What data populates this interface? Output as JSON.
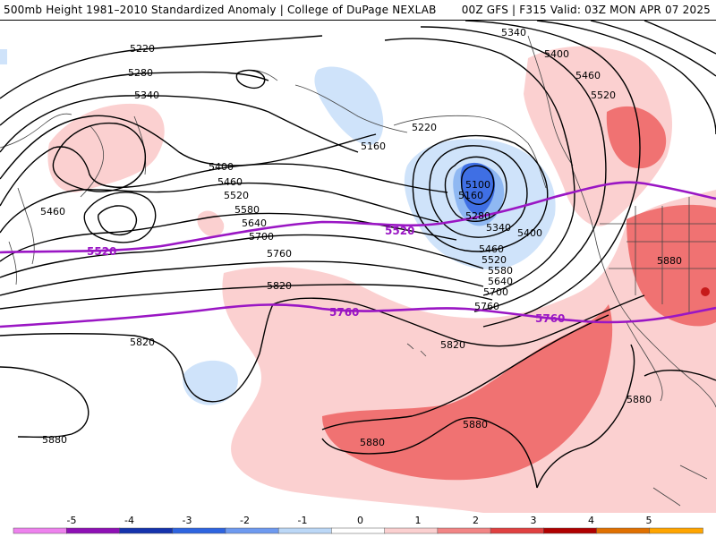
{
  "header": {
    "left": "500mb Height 1981–2010 Standardized Anomaly | College of DuPage NEXLAB",
    "right": "00Z GFS | F315 Valid: 03Z MON APR 07 2025"
  },
  "contour_labels": [
    "5220",
    "5280",
    "5340",
    "5460",
    "5400",
    "5460",
    "5520",
    "5580",
    "5640",
    "5700",
    "5760",
    "5820",
    "5820",
    "5820",
    "5880",
    "5220",
    "5160",
    "5100",
    "5160",
    "5280",
    "5340",
    "5400",
    "5460",
    "5520",
    "5580",
    "5640",
    "5700",
    "5760",
    "5820",
    "5340",
    "5400",
    "5460",
    "5520",
    "5880",
    "5880",
    "5880",
    "5880"
  ],
  "highlight_labels": [
    "5520",
    "5520",
    "5760",
    "5760"
  ],
  "legend": {
    "ticks": [
      "-5",
      "-4",
      "-3",
      "-2",
      "-1",
      "0",
      "1",
      "2",
      "3",
      "4",
      "5"
    ],
    "colors": [
      "#ee82ee",
      "#8e10b5",
      "#1533ad",
      "#2e64e0",
      "#6e9af0",
      "#bcd8f7",
      "#ffffff",
      "#fbd0d0",
      "#f28585",
      "#e04040",
      "#b00000",
      "#e07000",
      "#ffa500"
    ]
  },
  "colors": {
    "highlight_contour": "#9a16c4",
    "positive_light": "#fbd0d0",
    "positive_mid": "#f07272",
    "positive_dark": "#c61a1a",
    "negative_light": "#cfe3fa",
    "negative_mid": "#8fb8f2",
    "negative_dark": "#3f6fe4"
  }
}
